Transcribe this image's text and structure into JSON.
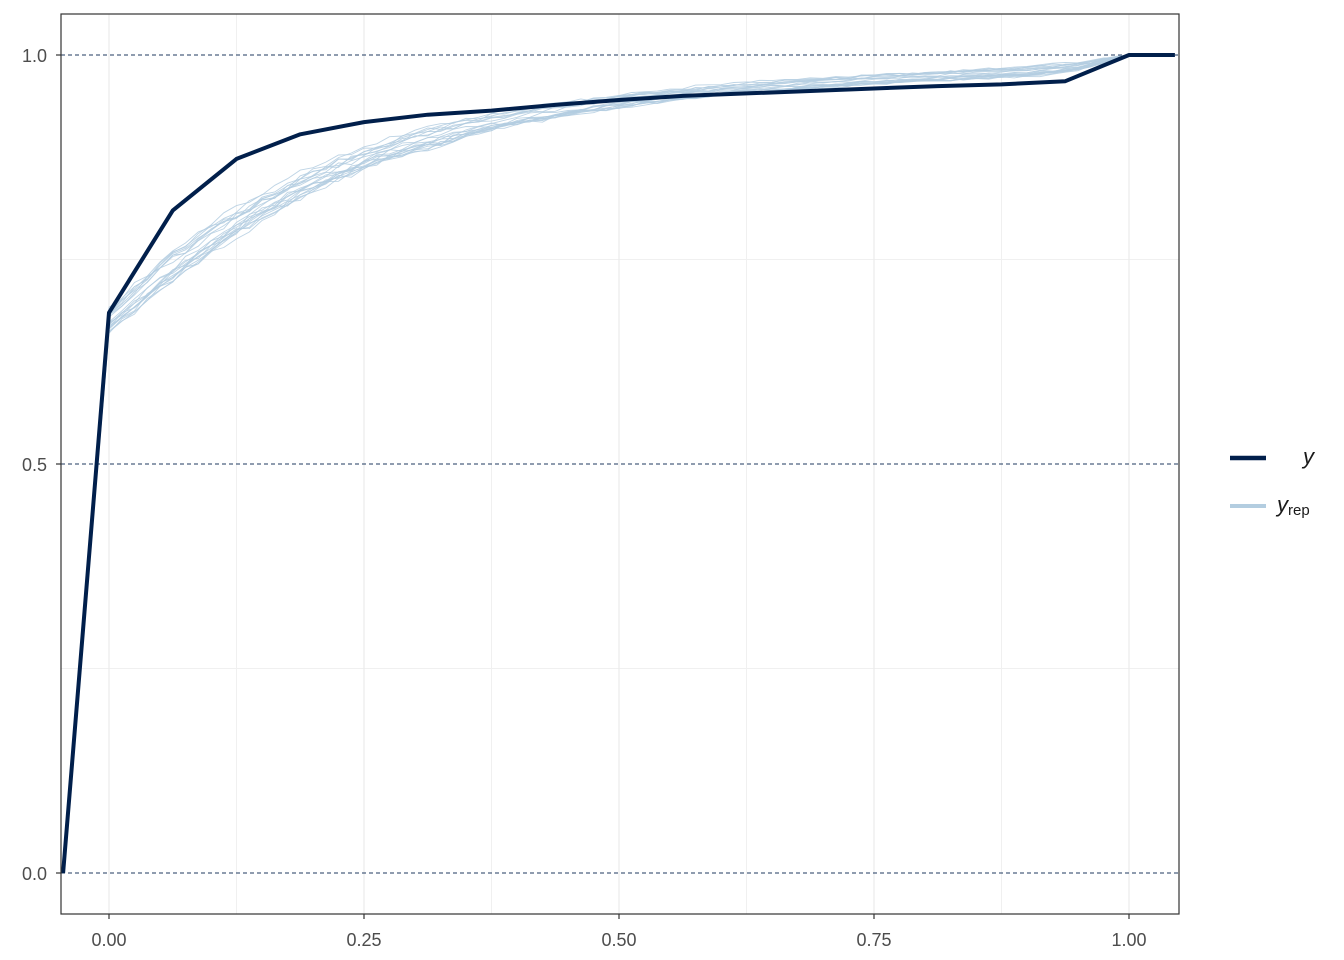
{
  "chart_data": {
    "type": "line",
    "title": "",
    "xlabel": "",
    "ylabel": "",
    "xlim": [
      -0.045,
      1.045
    ],
    "ylim": [
      -0.045,
      1.05
    ],
    "x_ticks": [
      0.0,
      0.25,
      0.5,
      0.75,
      1.0
    ],
    "x_tick_labels": [
      "0.00",
      "0.25",
      "0.50",
      "0.75",
      "1.00"
    ],
    "y_ticks": [
      0.0,
      0.5,
      1.0
    ],
    "y_tick_labels": [
      "0.0",
      "0.5",
      "1.0"
    ],
    "y_reference_lines": [
      0.0,
      0.5,
      1.0
    ],
    "grid": true,
    "legend_position": "right",
    "legend": [
      {
        "label": "y",
        "subscript": "",
        "color": "#011f4b",
        "line_width": 4
      },
      {
        "label": "y",
        "subscript": "rep",
        "color": "#b3cde0",
        "line_width": 1
      }
    ],
    "series": [
      {
        "color": "#011f4b",
        "x": [
          -0.045,
          0.0,
          0.0625,
          0.125,
          0.1875,
          0.25,
          0.3125,
          0.375,
          0.4375,
          0.5,
          0.5625,
          0.625,
          0.6875,
          0.75,
          0.8125,
          0.875,
          0.9375,
          1.0,
          1.045
        ],
        "values": [
          0.0,
          0.685,
          0.81,
          0.873,
          0.903,
          0.918,
          0.927,
          0.932,
          0.939,
          0.945,
          0.95,
          0.953,
          0.956,
          0.959,
          0.962,
          0.964,
          0.968,
          1.0,
          1.0
        ]
      }
    ],
    "replicates": {
      "color": "#b3cde0",
      "count": 20,
      "x": [
        -0.045,
        0.0,
        0.05,
        0.1,
        0.15,
        0.2,
        0.25,
        0.3,
        0.35,
        0.4,
        0.45,
        0.5,
        0.55,
        0.6,
        0.65,
        0.7,
        0.75,
        0.8,
        0.85,
        0.9,
        0.95,
        1.0,
        1.045
      ],
      "mean": [
        0.0,
        0.675,
        0.73,
        0.775,
        0.815,
        0.847,
        0.872,
        0.893,
        0.91,
        0.923,
        0.934,
        0.943,
        0.951,
        0.957,
        0.962,
        0.966,
        0.97,
        0.973,
        0.976,
        0.979,
        0.986,
        1.0,
        1.0
      ],
      "spread": [
        0.0,
        0.018,
        0.022,
        0.024,
        0.022,
        0.02,
        0.018,
        0.016,
        0.014,
        0.012,
        0.011,
        0.01,
        0.009,
        0.008,
        0.008,
        0.007,
        0.007,
        0.007,
        0.007,
        0.008,
        0.006,
        0.0,
        0.0
      ]
    }
  }
}
